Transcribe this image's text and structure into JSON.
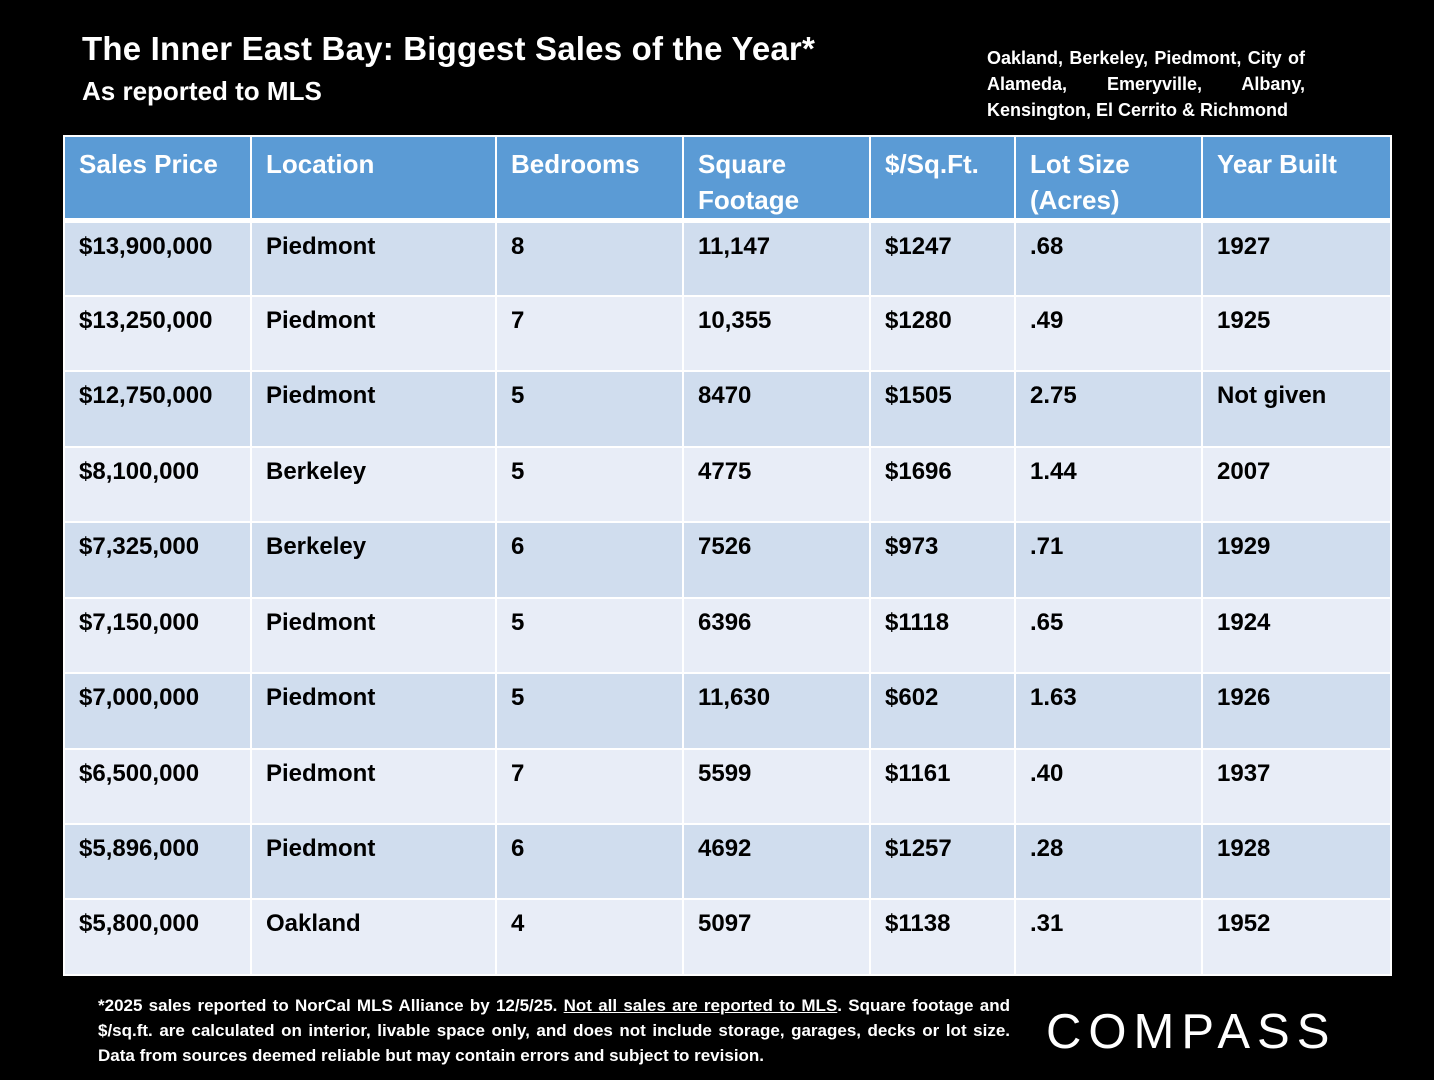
{
  "header": {
    "title": "The Inner East Bay: Biggest Sales of the Year*",
    "subtitle": "As reported to MLS",
    "region": "Oakland, Berkeley, Piedmont, City of Alameda, Emeryville, Albany, Kensington, El Cerrito & Richmond"
  },
  "table": {
    "headers": [
      "Sales Price",
      "Location",
      "Bedrooms",
      "Square Footage",
      "$/Sq.Ft.",
      "Lot Size (Acres)",
      "Year Built"
    ],
    "rows": [
      [
        "$13,900,000",
        "Piedmont",
        "8",
        "11,147",
        "$1247",
        ".68",
        "1927"
      ],
      [
        "$13,250,000",
        "Piedmont",
        "7",
        "10,355",
        "$1280",
        ".49",
        "1925"
      ],
      [
        "$12,750,000",
        "Piedmont",
        "5",
        "8470",
        "$1505",
        "2.75",
        "Not given"
      ],
      [
        "$8,100,000",
        "Berkeley",
        "5",
        "4775",
        "$1696",
        "1.44",
        "2007"
      ],
      [
        "$7,325,000",
        "Berkeley",
        "6",
        "7526",
        "$973",
        ".71",
        "1929"
      ],
      [
        "$7,150,000",
        "Piedmont",
        "5",
        "6396",
        "$1118",
        ".65",
        "1924"
      ],
      [
        "$7,000,000",
        "Piedmont",
        "5",
        "11,630",
        "$602",
        "1.63",
        "1926"
      ],
      [
        "$6,500,000",
        "Piedmont",
        "7",
        "5599",
        "$1161",
        ".40",
        "1937"
      ],
      [
        "$5,896,000",
        "Piedmont",
        "6",
        "4692",
        "$1257",
        ".28",
        "1928"
      ],
      [
        "$5,800,000",
        "Oakland",
        "4",
        "5097",
        "$1138",
        ".31",
        "1952"
      ]
    ]
  },
  "footnote": {
    "part1": "*2025 sales reported to NorCal MLS Alliance by 12/5/25.",
    "underlined": "Not all sales are reported to MLS",
    "part2": ". Square footage and $/sq.ft. are calculated on interior, livable space only, and does not include storage, garages, decks or lot size. Data from sources deemed reliable but may contain errors and subject to revision."
  },
  "logo": "COMPASS"
}
